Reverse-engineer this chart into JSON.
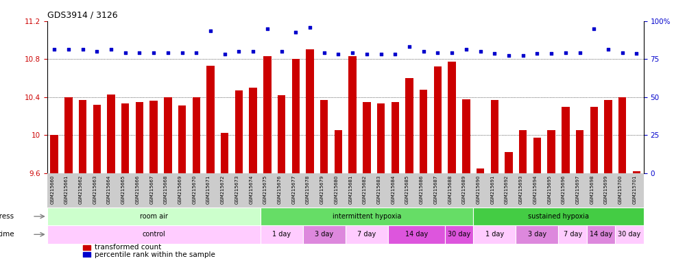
{
  "title": "GDS3914 / 3126",
  "samples": [
    "GSM215660",
    "GSM215661",
    "GSM215662",
    "GSM215663",
    "GSM215664",
    "GSM215665",
    "GSM215666",
    "GSM215667",
    "GSM215668",
    "GSM215669",
    "GSM215670",
    "GSM215671",
    "GSM215672",
    "GSM215673",
    "GSM215674",
    "GSM215675",
    "GSM215676",
    "GSM215677",
    "GSM215678",
    "GSM215679",
    "GSM215680",
    "GSM215681",
    "GSM215682",
    "GSM215683",
    "GSM215684",
    "GSM215685",
    "GSM215686",
    "GSM215687",
    "GSM215688",
    "GSM215689",
    "GSM215690",
    "GSM215691",
    "GSM215692",
    "GSM215693",
    "GSM215694",
    "GSM215695",
    "GSM215696",
    "GSM215697",
    "GSM215698",
    "GSM215699",
    "GSM215700",
    "GSM215701"
  ],
  "bar_values": [
    10.0,
    10.4,
    10.37,
    10.32,
    10.43,
    10.33,
    10.35,
    10.36,
    10.4,
    10.31,
    10.4,
    10.73,
    10.02,
    10.47,
    10.5,
    10.83,
    10.42,
    10.8,
    10.9,
    10.37,
    10.05,
    10.83,
    10.35,
    10.33,
    10.35,
    10.6,
    10.48,
    10.72,
    10.77,
    10.38,
    9.65,
    10.37,
    9.82,
    10.05,
    9.97,
    10.05,
    10.3,
    10.05,
    10.3,
    10.37,
    10.4,
    9.62
  ],
  "dot_values": [
    10.9,
    10.9,
    10.9,
    10.88,
    10.9,
    10.87,
    10.87,
    10.87,
    10.87,
    10.87,
    10.87,
    11.1,
    10.85,
    10.88,
    10.88,
    11.12,
    10.88,
    11.08,
    11.13,
    10.87,
    10.85,
    10.87,
    10.85,
    10.85,
    10.85,
    10.93,
    10.88,
    10.87,
    10.87,
    10.9,
    10.88,
    10.86,
    10.84,
    10.84,
    10.86,
    10.86,
    10.87,
    10.87,
    11.12,
    10.9,
    10.87,
    10.86
  ],
  "ylim": [
    9.6,
    11.2
  ],
  "yticks": [
    9.6,
    10.0,
    10.4,
    10.8,
    11.2
  ],
  "ytick_labels": [
    "9.6",
    "10",
    "10.4",
    "10.8",
    "11.2"
  ],
  "gridlines": [
    10.0,
    10.4,
    10.8
  ],
  "bar_color": "#cc0000",
  "dot_color": "#0000cc",
  "right_yticks": [
    0,
    25,
    50,
    75,
    100
  ],
  "right_ytick_labels": [
    "0",
    "25",
    "50",
    "75",
    "100%"
  ],
  "stress_groups": [
    {
      "label": "room air",
      "start": 0,
      "end": 15,
      "color": "#ccffcc"
    },
    {
      "label": "intermittent hypoxia",
      "start": 15,
      "end": 30,
      "color": "#66dd66"
    },
    {
      "label": "sustained hypoxia",
      "start": 30,
      "end": 42,
      "color": "#44cc44"
    }
  ],
  "time_groups": [
    {
      "label": "control",
      "start": 0,
      "end": 15,
      "color": "#ffccff"
    },
    {
      "label": "1 day",
      "start": 15,
      "end": 18,
      "color": "#ffccff"
    },
    {
      "label": "3 day",
      "start": 18,
      "end": 21,
      "color": "#dd88dd"
    },
    {
      "label": "7 day",
      "start": 21,
      "end": 24,
      "color": "#ffccff"
    },
    {
      "label": "14 day",
      "start": 24,
      "end": 28,
      "color": "#dd55dd"
    },
    {
      "label": "30 day",
      "start": 28,
      "end": 30,
      "color": "#dd55dd"
    },
    {
      "label": "1 day",
      "start": 30,
      "end": 33,
      "color": "#ffccff"
    },
    {
      "label": "3 day",
      "start": 33,
      "end": 36,
      "color": "#dd88dd"
    },
    {
      "label": "7 day",
      "start": 36,
      "end": 38,
      "color": "#ffccff"
    },
    {
      "label": "14 day",
      "start": 38,
      "end": 40,
      "color": "#dd88dd"
    },
    {
      "label": "30 day",
      "start": 40,
      "end": 42,
      "color": "#ffccff"
    }
  ],
  "xtick_bg_color": "#cccccc",
  "legend_items": [
    {
      "label": "transformed count",
      "color": "#cc0000"
    },
    {
      "label": "percentile rank within the sample",
      "color": "#0000cc"
    }
  ]
}
